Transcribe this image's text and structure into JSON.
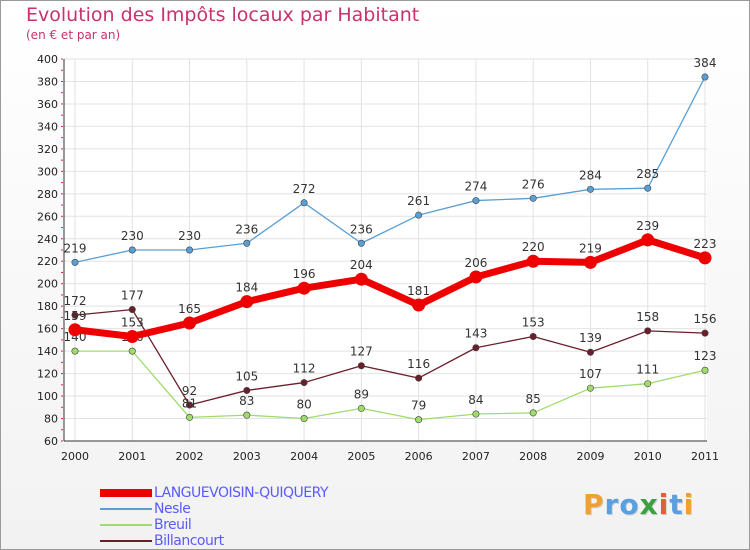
{
  "chart_data": {
    "type": "line",
    "title": "Evolution des Impôts locaux par Habitant",
    "subtitle": "(en € et par an)",
    "xlabel": "",
    "ylabel": "",
    "ylim": [
      60,
      400
    ],
    "yticks": [
      60,
      80,
      100,
      120,
      140,
      160,
      180,
      200,
      220,
      240,
      260,
      280,
      300,
      320,
      340,
      360,
      380,
      400
    ],
    "categories": [
      "2000",
      "2001",
      "2002",
      "2003",
      "2004",
      "2005",
      "2006",
      "2007",
      "2008",
      "2009",
      "2010",
      "2011"
    ],
    "grid": true,
    "legend_position": "bottom-left",
    "series": [
      {
        "name": "Nesle",
        "color": "#5a9fd4",
        "values": [
          219,
          230,
          230,
          236,
          272,
          236,
          261,
          274,
          276,
          284,
          285,
          384
        ],
        "labels": [
          "219",
          "230",
          "230",
          "236",
          "272",
          "236",
          "261",
          "274",
          "276",
          "284",
          "285",
          "384"
        ]
      },
      {
        "name": "Billancourt",
        "color": "#6b1f2a",
        "values": [
          172,
          177,
          92,
          105,
          112,
          127,
          116,
          143,
          153,
          139,
          158,
          156
        ],
        "labels": [
          "172",
          "177",
          "92",
          "105",
          "112",
          "127",
          "116",
          "143",
          "153",
          "139",
          "158",
          "156"
        ]
      },
      {
        "name": "Breuil",
        "color": "#9fdc6a",
        "values": [
          140,
          140,
          81,
          83,
          80,
          89,
          79,
          84,
          85,
          107,
          111,
          123
        ],
        "labels": [
          "140",
          "140",
          "81",
          "83",
          "80",
          "89",
          "79",
          "84",
          "85",
          "107",
          "111",
          "123"
        ]
      },
      {
        "name": "LANGUEVOISIN-QUIQUERY",
        "color": "#ee0000",
        "values": [
          159,
          153,
          165,
          184,
          196,
          204,
          181,
          206,
          220,
          219,
          239,
          223
        ],
        "labels": [
          "159",
          "153",
          "165",
          "184",
          "196",
          "204",
          "181",
          "206",
          "220",
          "219",
          "239",
          "223"
        ]
      }
    ],
    "legend": [
      "LANGUEVOISIN-QUIQUERY",
      "Nesle",
      "Breuil",
      "Billancourt"
    ]
  },
  "legend_colors": [
    "#ee0000",
    "#5a9fd4",
    "#9fdc6a",
    "#6b1f2a"
  ],
  "logo": {
    "letters": [
      "P",
      "r",
      "o",
      "x",
      "i",
      "t",
      "i"
    ],
    "colors": [
      "#f0a030",
      "#5aa0e0",
      "#5aa0e0",
      "#3aa040",
      "#e06030",
      "#5aa0e0",
      "#f0a030"
    ]
  }
}
